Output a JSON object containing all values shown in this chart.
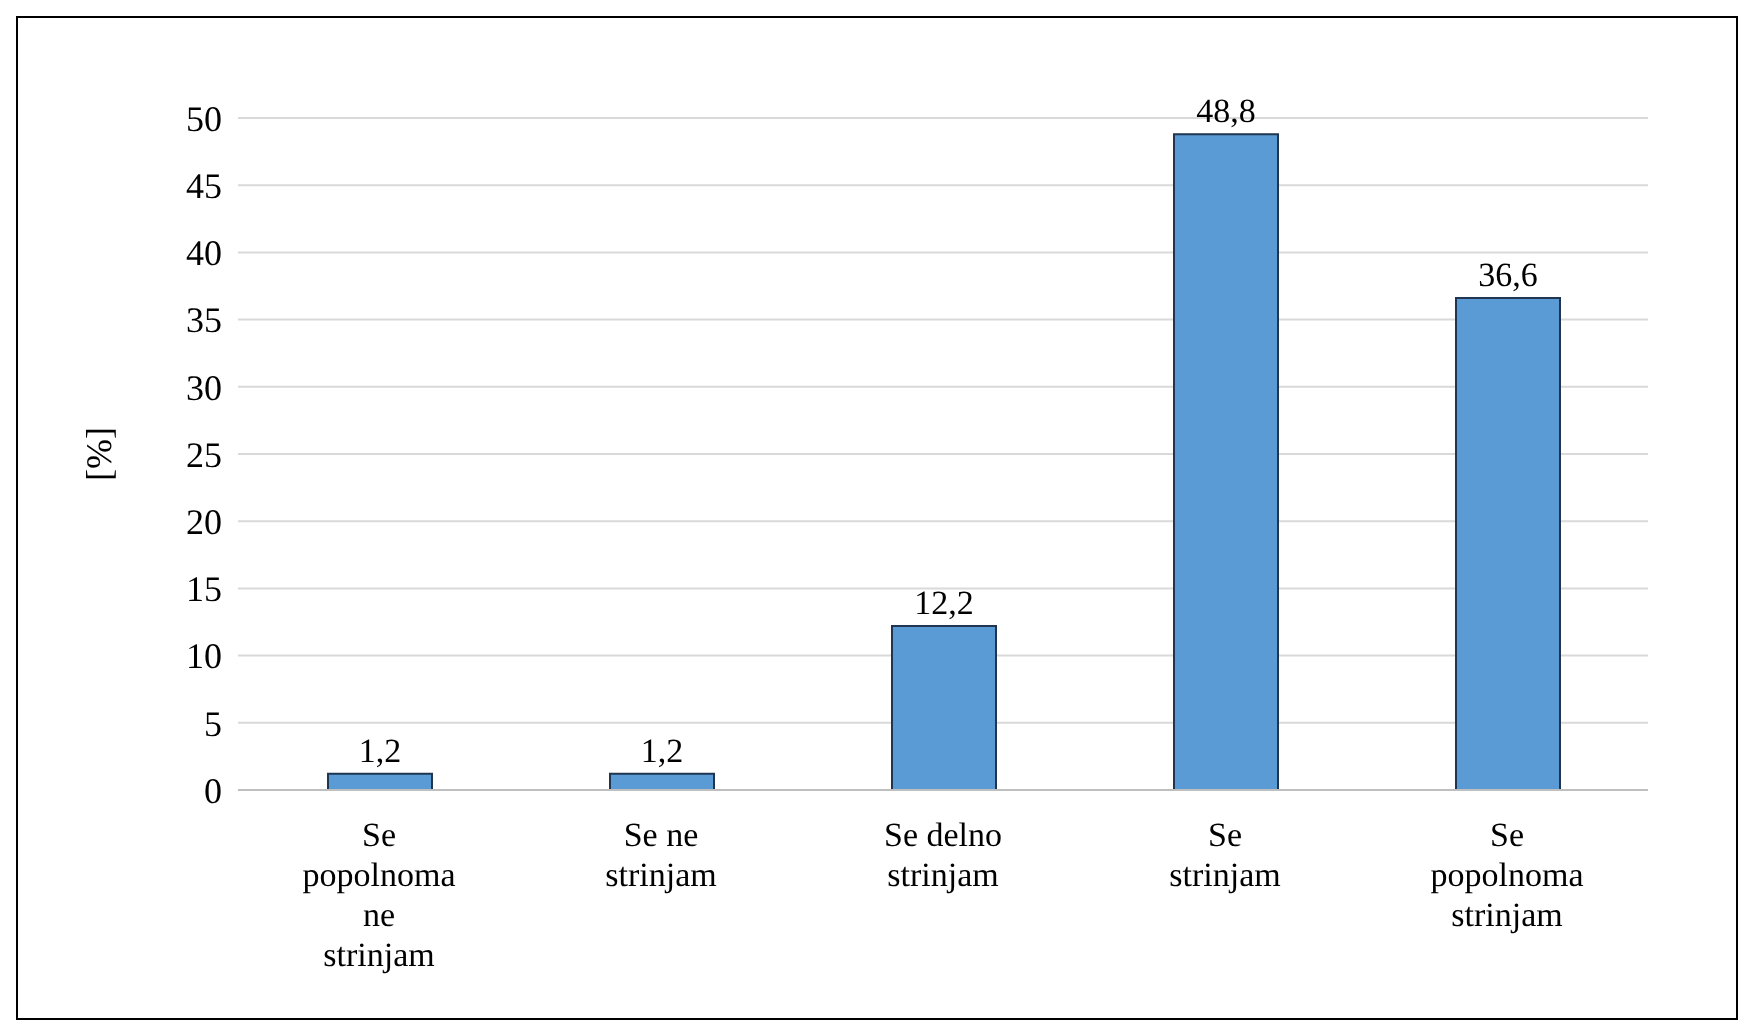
{
  "chart_data": {
    "type": "bar",
    "ylabel": "[%]",
    "categories": [
      "Se popolnoma ne strinjam",
      "Se ne strinjam",
      "Se delno strinjam",
      "Se strinjam",
      "Se popolnoma strinjam"
    ],
    "values": [
      1.2,
      1.2,
      12.2,
      48.8,
      36.6
    ],
    "value_labels": [
      "1,2",
      "1,2",
      "12,2",
      "48,8",
      "36,6"
    ],
    "color": "#5b9bd5",
    "ylim": [
      0,
      50
    ],
    "yticks": [
      0,
      5,
      10,
      15,
      20,
      25,
      30,
      35,
      40,
      45,
      50
    ],
    "grid": "y"
  }
}
